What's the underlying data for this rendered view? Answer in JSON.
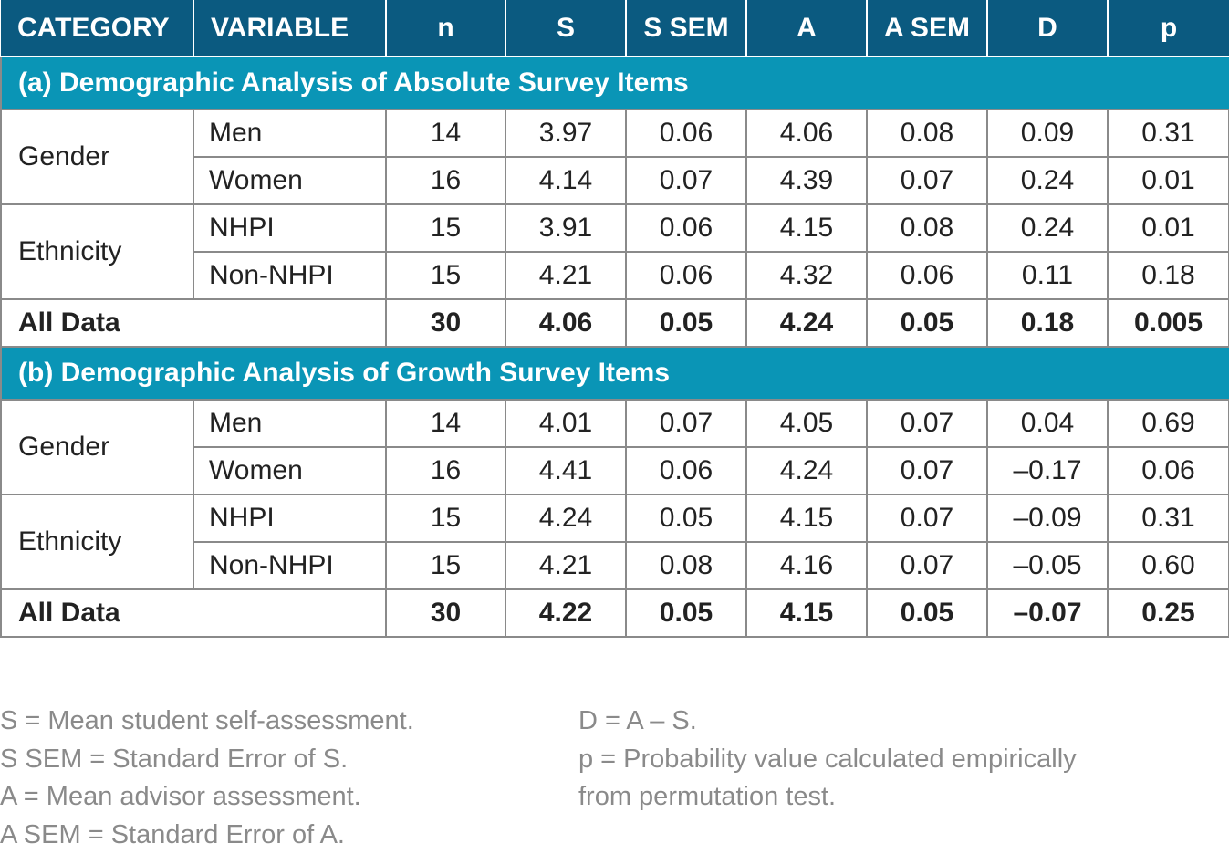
{
  "columns": [
    "CATEGORY",
    "VARIABLE",
    "n",
    "S",
    "S SEM",
    "A",
    "A SEM",
    "D",
    "p"
  ],
  "sections": [
    {
      "title": "(a) Demographic Analysis of Absolute Survey Items",
      "groups": [
        {
          "category": "Gender",
          "rows": [
            {
              "variable": "Men",
              "n": "14",
              "S": "3.97",
              "S_SEM": "0.06",
              "A": "4.06",
              "A_SEM": "0.08",
              "D": "0.09",
              "p": "0.31"
            },
            {
              "variable": "Women",
              "n": "16",
              "S": "4.14",
              "S_SEM": "0.07",
              "A": "4.39",
              "A_SEM": "0.07",
              "D": "0.24",
              "p": "0.01"
            }
          ]
        },
        {
          "category": "Ethnicity",
          "rows": [
            {
              "variable": "NHPI",
              "n": "15",
              "S": "3.91",
              "S_SEM": "0.06",
              "A": "4.15",
              "A_SEM": "0.08",
              "D": "0.24",
              "p": "0.01"
            },
            {
              "variable": "Non-NHPI",
              "n": "15",
              "S": "4.21",
              "S_SEM": "0.06",
              "A": "4.32",
              "A_SEM": "0.06",
              "D": "0.11",
              "p": "0.18"
            }
          ]
        }
      ],
      "all": {
        "label": "All Data",
        "n": "30",
        "S": "4.06",
        "S_SEM": "0.05",
        "A": "4.24",
        "A_SEM": "0.05",
        "D": "0.18",
        "p": "0.005"
      }
    },
    {
      "title": "(b) Demographic Analysis of Growth Survey Items",
      "groups": [
        {
          "category": "Gender",
          "rows": [
            {
              "variable": "Men",
              "n": "14",
              "S": "4.01",
              "S_SEM": "0.07",
              "A": "4.05",
              "A_SEM": "0.07",
              "D": "0.04",
              "p": "0.69"
            },
            {
              "variable": "Women",
              "n": "16",
              "S": "4.41",
              "S_SEM": "0.06",
              "A": "4.24",
              "A_SEM": "0.07",
              "D": "–0.17",
              "p": "0.06"
            }
          ]
        },
        {
          "category": "Ethnicity",
          "rows": [
            {
              "variable": "NHPI",
              "n": "15",
              "S": "4.24",
              "S_SEM": "0.05",
              "A": "4.15",
              "A_SEM": "0.07",
              "D": "–0.09",
              "p": "0.31"
            },
            {
              "variable": "Non-NHPI",
              "n": "15",
              "S": "4.21",
              "S_SEM": "0.08",
              "A": "4.16",
              "A_SEM": "0.07",
              "D": "–0.05",
              "p": "0.60"
            }
          ]
        }
      ],
      "all": {
        "label": "All Data",
        "n": "30",
        "S": "4.22",
        "S_SEM": "0.05",
        "A": "4.15",
        "A_SEM": "0.05",
        "D": "–0.07",
        "p": "0.25"
      }
    }
  ],
  "notes": {
    "left": [
      "S = Mean student self-assessment.",
      "S SEM = Standard Error of S.",
      "A = Mean advisor assessment.",
      "A SEM = Standard Error of A."
    ],
    "right": [
      "D = A – S.",
      "p = Probability value calculated empirically",
      "from permutation test."
    ]
  },
  "colors": {
    "header_bg": "#0b5a80",
    "section_bg": "#0a95b6",
    "border": "#8a8a8a",
    "note_text": "#8a8a8a"
  }
}
